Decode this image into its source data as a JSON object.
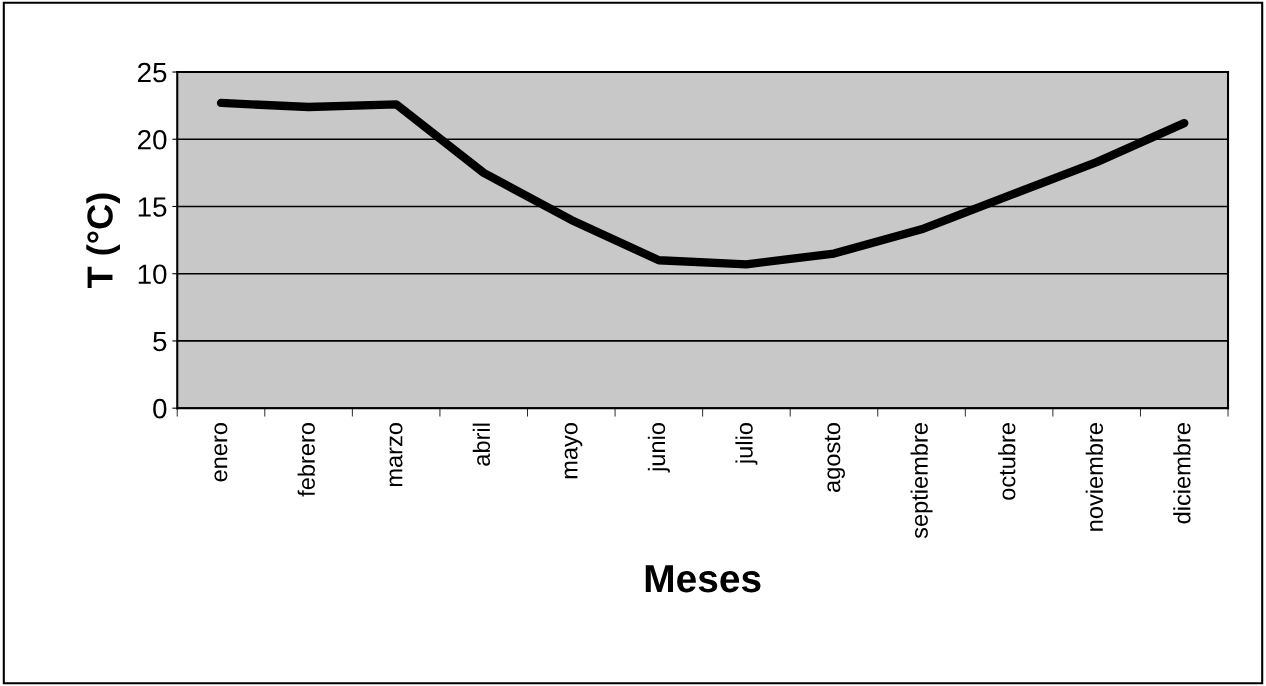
{
  "chart_data": {
    "type": "line",
    "xlabel": "Meses",
    "ylabel": "T (°C)",
    "categories": [
      "enero",
      "febrero",
      "marzo",
      "abril",
      "mayo",
      "junio",
      "julio",
      "agosto",
      "septiembre",
      "octubre",
      "noviembre",
      "diciembre"
    ],
    "series": [
      {
        "color": "#000000",
        "values": [
          22.7,
          22.4,
          22.6,
          17.5,
          14.0,
          11.0,
          10.7,
          11.5,
          13.3,
          15.8,
          18.3,
          21.2
        ]
      }
    ],
    "ylim": [
      0,
      25
    ],
    "yticks": [
      0,
      5,
      10,
      15,
      20,
      25
    ],
    "grid": "y",
    "marker": "none",
    "line_style": "solid",
    "legend": false
  }
}
